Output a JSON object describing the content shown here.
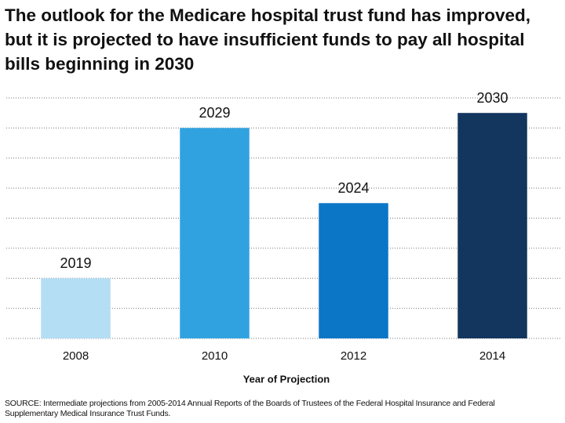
{
  "chart_data": {
    "type": "bar",
    "title": "The outlook for the Medicare hospital trust fund has improved, but it is projected to have insufficient funds to pay all hospital bills beginning in 2030",
    "xlabel": "Year of Projection",
    "source": "SOURCE: Intermediate projections from 2005-2014 Annual Reports of the Boards of Trustees of the Federal Hospital Insurance and Federal Supplementary Medical Insurance Trust Funds.",
    "categories": [
      "2008",
      "2010",
      "2012",
      "2014"
    ],
    "values": [
      2019,
      2029,
      2024,
      2030
    ],
    "colors": [
      "#b4def3",
      "#31a2e0",
      "#0b76c6",
      "#13365e"
    ],
    "ylim": [
      2015,
      2031
    ],
    "yticks": [
      2015,
      2017,
      2019,
      2021,
      2023,
      2025,
      2027,
      2029,
      2031
    ],
    "grid": true
  }
}
